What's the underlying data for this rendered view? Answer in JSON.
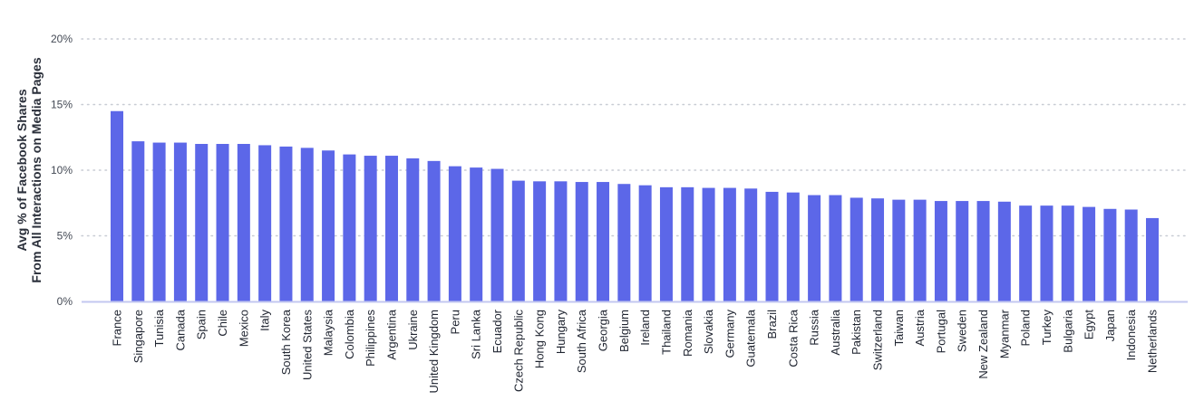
{
  "chart_data": {
    "type": "bar",
    "ylabel_line1": "Avg % of Facebook Shares",
    "ylabel_line2": "From All Interactions on Media Pages",
    "xlabel": "",
    "ylim": [
      0,
      20
    ],
    "yticks": [
      {
        "value": 0,
        "label": "0%"
      },
      {
        "value": 5,
        "label": "5%"
      },
      {
        "value": 10,
        "label": "10%"
      },
      {
        "value": 15,
        "label": "15%"
      },
      {
        "value": 20,
        "label": "20%"
      }
    ],
    "grid": "horizontal dotted",
    "categories": [
      "France",
      "Singapore",
      "Tunisia",
      "Canada",
      "Spain",
      "Chile",
      "Mexico",
      "Italy",
      "South Korea",
      "United States",
      "Malaysia",
      "Colombia",
      "Philippines",
      "Argentina",
      "Ukraine",
      "United Kingdom",
      "Peru",
      "Sri Lanka",
      "Ecuador",
      "Czech Republic",
      "Hong Kong",
      "Hungary",
      "South Africa",
      "Georgia",
      "Belgium",
      "Ireland",
      "Thailand",
      "Romania",
      "Slovakia",
      "Germany",
      "Guatemala",
      "Brazil",
      "Costa Rica",
      "Russia",
      "Australia",
      "Pakistan",
      "Switzerland",
      "Taiwan",
      "Austria",
      "Portugal",
      "Sweden",
      "New Zealand",
      "Myanmar",
      "Poland",
      "Turkey",
      "Bulgaria",
      "Egypt",
      "Japan",
      "Indonesia",
      "Netherlands"
    ],
    "values": [
      14.5,
      12.2,
      12.1,
      12.1,
      12.0,
      12.0,
      12.0,
      11.9,
      11.8,
      11.7,
      11.5,
      11.2,
      11.1,
      11.1,
      10.9,
      10.7,
      10.3,
      10.2,
      10.1,
      9.2,
      9.15,
      9.15,
      9.1,
      9.1,
      8.95,
      8.85,
      8.7,
      8.7,
      8.65,
      8.65,
      8.6,
      8.35,
      8.3,
      8.1,
      8.1,
      7.9,
      7.85,
      7.75,
      7.75,
      7.65,
      7.65,
      7.65,
      7.6,
      7.3,
      7.3,
      7.3,
      7.2,
      7.05,
      7.0,
      6.35
    ],
    "bar_color": "#5c67e8",
    "grid_color": "#c8ccd4",
    "axis_color": "#c3c7f0"
  }
}
